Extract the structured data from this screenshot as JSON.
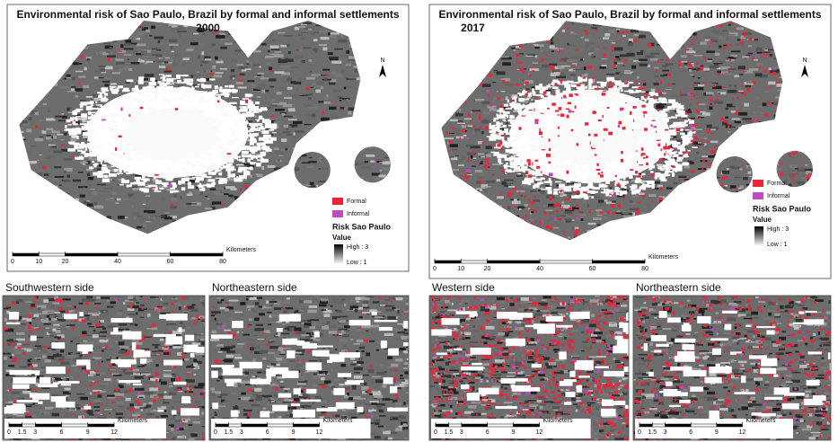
{
  "main_maps": [
    {
      "title": "Environmental risk of Sao Paulo, Brazil by formal and informal settlements",
      "year": "2000",
      "north": "N",
      "legend": {
        "items": [
          {
            "label": "Formal",
            "color": "#e8263a"
          },
          {
            "label": "Informal",
            "color": "#c04bc0"
          }
        ],
        "heading": "Risk Sao Paulo",
        "subheading": "Value",
        "high": "High : 3",
        "low": "Low : 1"
      },
      "scale": {
        "ticks": [
          0,
          10,
          20,
          40,
          60,
          80
        ],
        "unit": "Kilometers"
      }
    },
    {
      "title": "Environmental risk of Sao Paulo, Brazil by formal and informal settlements",
      "year": "2017",
      "north": "N",
      "legend": {
        "items": [
          {
            "label": "Formal",
            "color": "#e8263a"
          },
          {
            "label": "Informal",
            "color": "#c04bc0"
          }
        ],
        "heading": "Risk Sao Paulo",
        "subheading": "Value",
        "high": "High : 3",
        "low": "Low : 1"
      },
      "scale": {
        "ticks": [
          0,
          10,
          20,
          40,
          60,
          80
        ],
        "unit": "Kilometers"
      }
    }
  ],
  "insets": [
    {
      "title": "Southwestern side",
      "scale": {
        "ticks": [
          0,
          1.5,
          3,
          6,
          9,
          12
        ],
        "unit": "Kilometers"
      }
    },
    {
      "title": "Northeastern side",
      "scale": {
        "ticks": [
          0,
          1.5,
          3,
          6,
          9,
          12
        ],
        "unit": "Kilometers"
      }
    },
    {
      "title": "Western side",
      "scale": {
        "ticks": [
          0,
          1.5,
          3,
          6,
          9,
          12
        ],
        "unit": "Kilometers"
      }
    },
    {
      "title": "Northeastern side",
      "scale": {
        "ticks": [
          0,
          1.5,
          3,
          6,
          9,
          12
        ],
        "unit": "Kilometers"
      }
    }
  ]
}
